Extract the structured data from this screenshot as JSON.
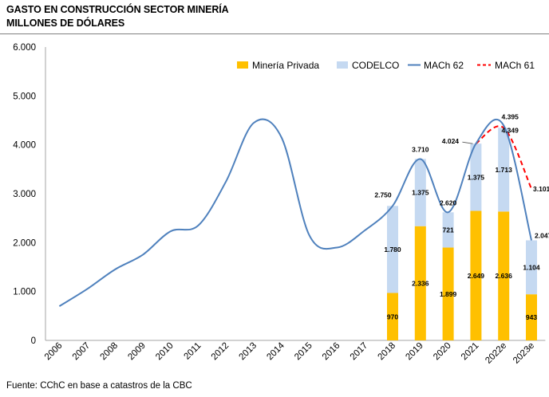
{
  "title_line1": "GASTO EN CONSTRUCCIÓN SECTOR MINERÍA",
  "title_line2": "MILLONES DE DÓLARES",
  "source": "Fuente: CChC en base a catastros de la CBC",
  "chart_data": {
    "type": "bar",
    "categories": [
      "2006",
      "2007",
      "2008",
      "2009",
      "2010",
      "2011",
      "2012",
      "2013",
      "2014",
      "2015",
      "2016",
      "2017",
      "2018",
      "2019",
      "2020",
      "2021",
      "2022e",
      "2023e"
    ],
    "ylim": [
      0,
      6000
    ],
    "yticks": [
      0,
      1000,
      2000,
      3000,
      4000,
      5000,
      6000
    ],
    "ytick_labels": [
      "0",
      "1.000",
      "2.000",
      "3.000",
      "4.000",
      "5.000",
      "6.000"
    ],
    "series": [
      {
        "name": "Minería Privada",
        "kind": "bar",
        "color": "#FFC000",
        "values": [
          null,
          null,
          null,
          null,
          null,
          null,
          null,
          null,
          null,
          null,
          null,
          null,
          970,
          2336,
          1899,
          2649,
          2636,
          943
        ],
        "labels": [
          "",
          "",
          "",
          "",
          "",
          "",
          "",
          "",
          "",
          "",
          "",
          "",
          "970",
          "2.336",
          "1.899",
          "2.649",
          "2.636",
          "943"
        ]
      },
      {
        "name": "CODELCO",
        "kind": "bar",
        "color": "#C5D9F1",
        "values": [
          null,
          null,
          null,
          null,
          null,
          null,
          null,
          null,
          null,
          null,
          null,
          null,
          1780,
          1375,
          721,
          1375,
          1713,
          1104
        ],
        "labels": [
          "",
          "",
          "",
          "",
          "",
          "",
          "",
          "",
          "",
          "",
          "",
          "",
          "1.780",
          "1.375",
          "721",
          "1.375",
          "1.713",
          "1.104"
        ]
      },
      {
        "name": "MACh 62",
        "kind": "line",
        "color": "#4F81BD",
        "values": [
          700,
          1050,
          1450,
          1750,
          2230,
          2350,
          3250,
          4450,
          4150,
          2150,
          1900,
          2250,
          2750,
          3710,
          2620,
          4024,
          4395,
          2047
        ],
        "labels": [
          "",
          "",
          "",
          "",
          "",
          "",
          "",
          "",
          "",
          "",
          "",
          "",
          "2.750",
          "3.710",
          "2.620",
          "4.024",
          "4.395",
          "2.047"
        ]
      },
      {
        "name": "MACh 61",
        "kind": "line",
        "dash": true,
        "color": "#FF0000",
        "values": [
          null,
          null,
          null,
          null,
          null,
          null,
          null,
          null,
          null,
          null,
          null,
          null,
          null,
          null,
          null,
          4024,
          4349,
          3101
        ],
        "labels": [
          "",
          "",
          "",
          "",
          "",
          "",
          "",
          "",
          "",
          "",
          "",
          "",
          "",
          "",
          "",
          "",
          "4.349",
          "3.101"
        ]
      }
    ],
    "legend_position": "top-right"
  }
}
